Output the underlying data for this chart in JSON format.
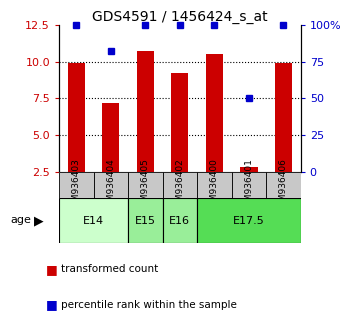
{
  "title": "GDS4591 / 1456424_s_at",
  "samples": [
    "GSM936403",
    "GSM936404",
    "GSM936405",
    "GSM936402",
    "GSM936400",
    "GSM936401",
    "GSM936406"
  ],
  "bar_values": [
    9.9,
    7.2,
    10.7,
    9.2,
    10.5,
    2.8,
    9.9
  ],
  "percentile_values": [
    100,
    82,
    100,
    100,
    100,
    50,
    100
  ],
  "ylim_left": [
    2.5,
    12.5
  ],
  "ylim_right": [
    0,
    100
  ],
  "yticks_left": [
    2.5,
    5.0,
    7.5,
    10.0,
    12.5
  ],
  "yticks_right": [
    0,
    25,
    50,
    75,
    100
  ],
  "ytick_labels_right": [
    "0",
    "25",
    "50",
    "75",
    "100%"
  ],
  "hlines": [
    5.0,
    7.5,
    10.0
  ],
  "bar_color": "#cc0000",
  "percentile_color": "#0000cc",
  "age_group_data": [
    {
      "label": "E14",
      "start": 0,
      "end": 2,
      "color": "#ccffcc"
    },
    {
      "label": "E15",
      "start": 2,
      "end": 3,
      "color": "#99ee99"
    },
    {
      "label": "E16",
      "start": 3,
      "end": 4,
      "color": "#99ee99"
    },
    {
      "label": "E17.5",
      "start": 4,
      "end": 7,
      "color": "#55dd55"
    }
  ],
  "age_label": "age",
  "legend_items": [
    {
      "color": "#cc0000",
      "label": "transformed count"
    },
    {
      "color": "#0000cc",
      "label": "percentile rank within the sample"
    }
  ],
  "sample_bg_color": "#c8c8c8",
  "bar_width": 0.5
}
